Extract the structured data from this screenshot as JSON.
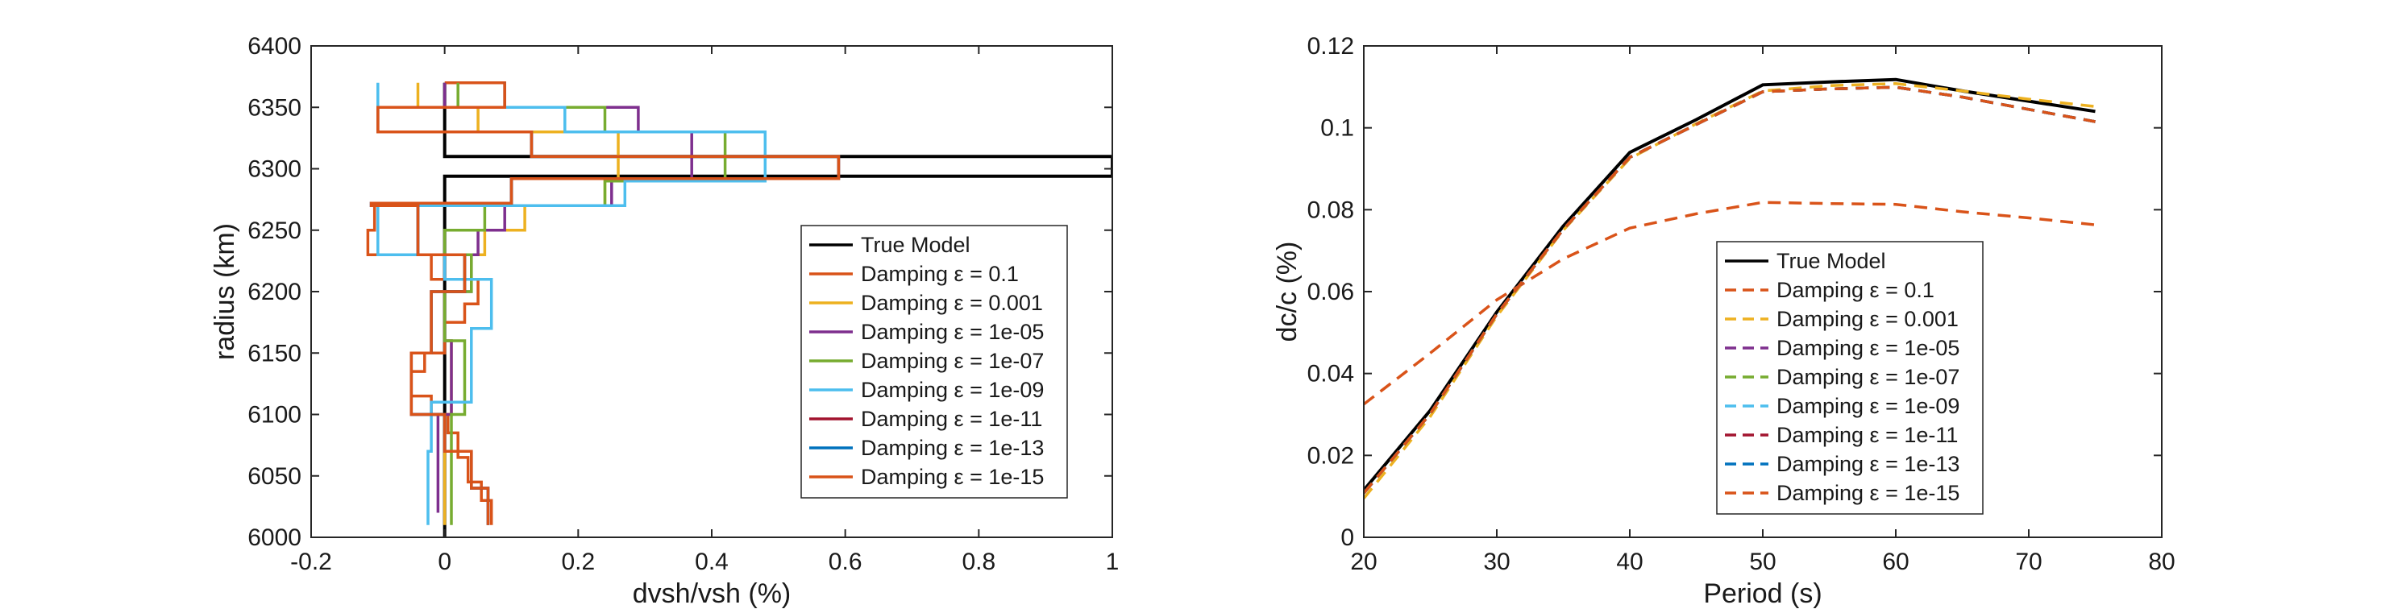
{
  "charts": [
    {
      "id": "left",
      "type": "line",
      "xlabel": "dvsh/vsh (%)",
      "ylabel": "radius (km)",
      "xlim": [
        -0.2,
        1
      ],
      "ylim": [
        6000,
        6400
      ],
      "xticks": [
        -0.2,
        0,
        0.2,
        0.4,
        0.6,
        0.8,
        1
      ],
      "xtick_labels": [
        "-0.2",
        "0",
        "0.2",
        "0.4",
        "0.6",
        "0.8",
        "1"
      ],
      "yticks": [
        6000,
        6050,
        6100,
        6150,
        6200,
        6250,
        6300,
        6350,
        6400
      ],
      "ytick_labels": [
        "6000",
        "6050",
        "6100",
        "6150",
        "6200",
        "6250",
        "6300",
        "6350",
        "6400"
      ],
      "legend_position": "lower-right",
      "series": [
        {
          "name": "True Model",
          "color": "#000000",
          "dashed": false,
          "x": [
            0,
            0,
            1,
            1,
            0,
            0
          ],
          "y": [
            6000,
            6294,
            6294,
            6310,
            6310,
            6370
          ]
        },
        {
          "name": "Damping ε = 0.1",
          "color": "#d95319",
          "dashed": false,
          "x": [
            0.07,
            0.07,
            0.055,
            0.055,
            0.035,
            0.035,
            0.02,
            0.02,
            0.005,
            0.005,
            -0.02,
            -0.02,
            -0.05,
            -0.05,
            -0.03,
            -0.03,
            0.0,
            0.0,
            0.03,
            0.03,
            0.05,
            0.05,
            -0.02,
            -0.02,
            -0.115,
            -0.115,
            -0.105,
            -0.105,
            0.1,
            0.1,
            0.59,
            0.59,
            0.13,
            0.13,
            -0.1,
            -0.1,
            0.09,
            0.09,
            0.0,
            0.0
          ],
          "y": [
            6010,
            6030,
            6030,
            6045,
            6045,
            6065,
            6065,
            6085,
            6085,
            6100,
            6100,
            6115,
            6115,
            6135,
            6135,
            6150,
            6150,
            6175,
            6175,
            6190,
            6190,
            6210,
            6210,
            6230,
            6230,
            6250,
            6250,
            6272,
            6272,
            6292,
            6292,
            6310,
            6310,
            6330,
            6330,
            6350,
            6350,
            6370,
            6370,
            6370
          ]
        },
        {
          "name": "Damping ε = 0.001",
          "color": "#edb120",
          "dashed": false,
          "x": [
            0.0,
            0.0,
            0.01,
            0.01,
            0.0,
            0.0,
            0.03,
            0.03,
            0.06,
            0.06,
            0.12,
            0.12,
            0.24,
            0.24,
            0.26,
            0.26,
            0.05,
            0.05,
            -0.04,
            -0.04
          ],
          "y": [
            6010,
            6100,
            6100,
            6160,
            6160,
            6200,
            6200,
            6230,
            6230,
            6250,
            6250,
            6270,
            6270,
            6290,
            6290,
            6330,
            6330,
            6350,
            6350,
            6370
          ]
        },
        {
          "name": "Damping ε = 1e-05",
          "color": "#7e2f8e",
          "dashed": false,
          "x": [
            -0.01,
            -0.01,
            0.01,
            0.01,
            0.0,
            0.0,
            0.04,
            0.04,
            0.05,
            0.05,
            0.09,
            0.09,
            0.25,
            0.25,
            0.37,
            0.37,
            0.29,
            0.29,
            0.0,
            0.0
          ],
          "y": [
            6020,
            6100,
            6100,
            6160,
            6160,
            6200,
            6200,
            6230,
            6230,
            6250,
            6250,
            6270,
            6270,
            6290,
            6290,
            6330,
            6330,
            6350,
            6350,
            6370
          ]
        },
        {
          "name": "Damping ε = 1e-07",
          "color": "#77ac30",
          "dashed": false,
          "x": [
            0.01,
            0.01,
            0.03,
            0.03,
            0.0,
            0.0,
            0.04,
            0.04,
            0.0,
            0.0,
            0.06,
            0.06,
            0.24,
            0.24,
            0.42,
            0.42,
            0.24,
            0.24,
            0.02,
            0.02
          ],
          "y": [
            6010,
            6100,
            6100,
            6160,
            6160,
            6200,
            6200,
            6230,
            6230,
            6250,
            6250,
            6270,
            6270,
            6290,
            6290,
            6330,
            6330,
            6350,
            6350,
            6370
          ]
        },
        {
          "name": "Damping ε = 1e-09",
          "color": "#4dbeee",
          "dashed": false,
          "x": [
            -0.025,
            -0.025,
            -0.02,
            -0.02,
            0.04,
            0.04,
            0.07,
            0.07,
            0.0,
            0.0,
            -0.1,
            -0.1,
            0.27,
            0.27,
            0.48,
            0.48,
            0.18,
            0.18,
            -0.1,
            -0.1
          ],
          "y": [
            6010,
            6070,
            6070,
            6110,
            6110,
            6170,
            6170,
            6210,
            6210,
            6230,
            6230,
            6270,
            6270,
            6290,
            6290,
            6330,
            6330,
            6350,
            6350,
            6370
          ]
        },
        {
          "name": "Damping ε = 1e-11",
          "color": "#a2142f",
          "dashed": false,
          "x": [
            0.065,
            0.065,
            0.04,
            0.04,
            0.0,
            0.0,
            -0.05,
            -0.05,
            -0.02,
            -0.02,
            0.03,
            0.03,
            -0.04,
            -0.04,
            -0.11,
            -0.11,
            0.1,
            0.1,
            0.59,
            0.59,
            0.13,
            0.13,
            -0.1,
            -0.1,
            0.09,
            0.09
          ],
          "y": [
            6010,
            6040,
            6040,
            6070,
            6070,
            6100,
            6100,
            6150,
            6150,
            6200,
            6200,
            6230,
            6230,
            6270,
            6270,
            6272,
            6272,
            6292,
            6292,
            6310,
            6310,
            6330,
            6330,
            6350,
            6350,
            6370
          ]
        },
        {
          "name": "Damping ε = 1e-13",
          "color": "#0072bd",
          "dashed": false,
          "x": [
            0.065,
            0.065,
            0.04,
            0.04,
            0.0,
            0.0,
            -0.05,
            -0.05,
            -0.02,
            -0.02,
            0.03,
            0.03,
            -0.04,
            -0.04,
            -0.11,
            -0.11,
            0.1,
            0.1,
            0.59,
            0.59,
            0.13,
            0.13,
            -0.1,
            -0.1,
            0.09,
            0.09
          ],
          "y": [
            6010,
            6040,
            6040,
            6070,
            6070,
            6100,
            6100,
            6150,
            6150,
            6200,
            6200,
            6230,
            6230,
            6270,
            6270,
            6272,
            6272,
            6292,
            6292,
            6310,
            6310,
            6330,
            6330,
            6350,
            6350,
            6370
          ]
        },
        {
          "name": "Damping ε = 1e-15",
          "color": "#d95319",
          "dashed": false,
          "x": [
            0.065,
            0.065,
            0.04,
            0.04,
            0.0,
            0.0,
            -0.05,
            -0.05,
            -0.02,
            -0.02,
            0.03,
            0.03,
            -0.04,
            -0.04,
            -0.11,
            -0.11,
            0.1,
            0.1,
            0.59,
            0.59,
            0.13,
            0.13,
            -0.1,
            -0.1,
            0.09,
            0.09
          ],
          "y": [
            6010,
            6040,
            6040,
            6070,
            6070,
            6100,
            6100,
            6150,
            6150,
            6200,
            6200,
            6230,
            6230,
            6270,
            6270,
            6272,
            6272,
            6292,
            6292,
            6310,
            6310,
            6330,
            6330,
            6350,
            6350,
            6370
          ]
        }
      ]
    },
    {
      "id": "right",
      "type": "line",
      "xlabel": "Period (s)",
      "ylabel": "dc/c (%)",
      "xlim": [
        20,
        80
      ],
      "ylim": [
        0,
        0.12
      ],
      "xticks": [
        20,
        30,
        40,
        50,
        60,
        70,
        80
      ],
      "xtick_labels": [
        "20",
        "30",
        "40",
        "50",
        "60",
        "70",
        "80"
      ],
      "yticks": [
        0,
        0.02,
        0.04,
        0.06,
        0.08,
        0.1,
        0.12
      ],
      "ytick_labels": [
        "0",
        "0.02",
        "0.04",
        "0.06",
        "0.08",
        "0.1",
        "0.12"
      ],
      "legend_position": "lower-center",
      "series": [
        {
          "name": "True Model",
          "color": "#000000",
          "dashed": false,
          "x": [
            20,
            25,
            30,
            35,
            40,
            45,
            50,
            55,
            60,
            65,
            70,
            75
          ],
          "y": [
            0.0115,
            0.031,
            0.055,
            0.076,
            0.094,
            0.102,
            0.1105,
            0.1112,
            0.1118,
            0.109,
            0.1065,
            0.104
          ]
        },
        {
          "name": "Damping ε = 0.1",
          "color": "#d95319",
          "dashed": true,
          "x": [
            20,
            25,
            30,
            35,
            40,
            45,
            50,
            55,
            60,
            65,
            70,
            75
          ],
          "y": [
            0.0325,
            0.045,
            0.058,
            0.068,
            0.0755,
            0.079,
            0.0818,
            0.0815,
            0.0813,
            0.0795,
            0.078,
            0.0763
          ]
        },
        {
          "name": "Damping ε = 0.001",
          "color": "#edb120",
          "dashed": true,
          "x": [
            20,
            25,
            30,
            35,
            40,
            45,
            50,
            55,
            60,
            65,
            70,
            75
          ],
          "y": [
            0.0095,
            0.0295,
            0.054,
            0.075,
            0.0925,
            0.101,
            0.109,
            0.1103,
            0.1108,
            0.109,
            0.107,
            0.1052
          ]
        },
        {
          "name": "Damping ε = 1e-05",
          "color": "#7e2f8e",
          "dashed": true,
          "x": [
            20,
            25,
            30,
            35,
            40,
            45,
            50,
            55,
            60,
            65,
            70,
            75
          ],
          "y": [
            0.0108,
            0.0302,
            0.0545,
            0.0752,
            0.0928,
            0.1008,
            0.1088,
            0.1095,
            0.1099,
            0.1075,
            0.1045,
            0.1015
          ]
        },
        {
          "name": "Damping ε = 1e-07",
          "color": "#77ac30",
          "dashed": true,
          "x": [
            20,
            25,
            30,
            35,
            40,
            45,
            50,
            55,
            60,
            65,
            70,
            75
          ],
          "y": [
            0.0108,
            0.0302,
            0.0545,
            0.0752,
            0.0928,
            0.1008,
            0.1088,
            0.1095,
            0.1099,
            0.1075,
            0.1045,
            0.1015
          ]
        },
        {
          "name": "Damping ε = 1e-09",
          "color": "#4dbeee",
          "dashed": true,
          "x": [
            20,
            25,
            30,
            35,
            40,
            45,
            50,
            55,
            60,
            65,
            70,
            75
          ],
          "y": [
            0.0108,
            0.0302,
            0.0545,
            0.0752,
            0.0928,
            0.1008,
            0.1088,
            0.1095,
            0.1099,
            0.1075,
            0.1045,
            0.1015
          ]
        },
        {
          "name": "Damping ε = 1e-11",
          "color": "#a2142f",
          "dashed": true,
          "x": [
            20,
            25,
            30,
            35,
            40,
            45,
            50,
            55,
            60,
            65,
            70,
            75
          ],
          "y": [
            0.0108,
            0.0302,
            0.0545,
            0.0752,
            0.0928,
            0.1008,
            0.1088,
            0.1095,
            0.1099,
            0.1075,
            0.1045,
            0.1015
          ]
        },
        {
          "name": "Damping ε = 1e-13",
          "color": "#0072bd",
          "dashed": true,
          "x": [
            20,
            25,
            30,
            35,
            40,
            45,
            50,
            55,
            60,
            65,
            70,
            75
          ],
          "y": [
            0.0108,
            0.0302,
            0.0545,
            0.0752,
            0.0928,
            0.1008,
            0.1088,
            0.1095,
            0.1099,
            0.1075,
            0.1045,
            0.1015
          ]
        },
        {
          "name": "Damping ε = 1e-15",
          "color": "#d95319",
          "dashed": true,
          "x": [
            20,
            25,
            30,
            35,
            40,
            45,
            50,
            55,
            60,
            65,
            70,
            75
          ],
          "y": [
            0.0108,
            0.0302,
            0.0545,
            0.0752,
            0.0928,
            0.1008,
            0.1088,
            0.1095,
            0.1099,
            0.1075,
            0.1045,
            0.1015
          ]
        }
      ]
    }
  ]
}
